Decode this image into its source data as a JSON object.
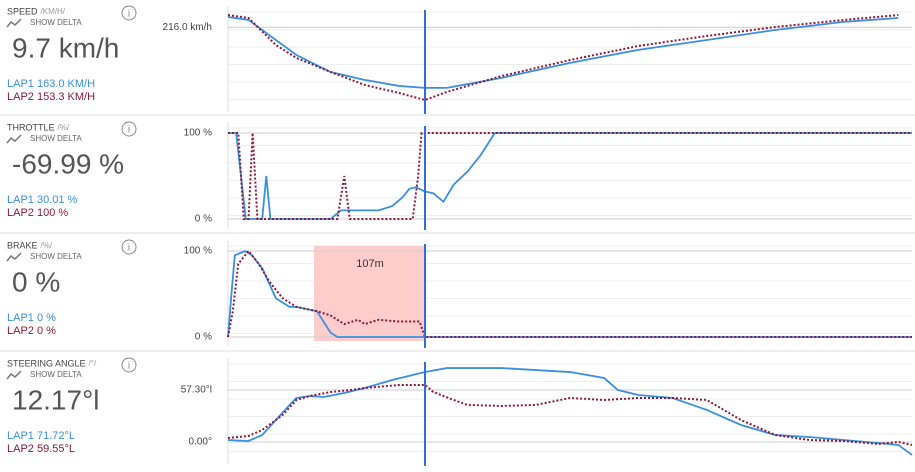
{
  "panels": [
    {
      "title": "SPEED",
      "unit": "/KM/H/",
      "delta_label": "SHOW DELTA",
      "value": "9.7 km/h",
      "lap1": "LAP1 163.0 KM/H",
      "lap2": "LAP2 153.3 KM/H",
      "chart": {
        "type": "line",
        "ylim": [
          140,
          230
        ],
        "xlim": [
          0,
          100
        ],
        "yticks": [
          {
            "value": 216,
            "label": "216.0 km/h"
          }
        ],
        "series": [
          {
            "name": "LAP1",
            "color": "#3a8fde",
            "x": [
              0,
              3,
              7,
              10,
              15,
              20,
              25,
              28.8,
              32,
              40,
              50,
              60,
              70,
              80,
              90,
              98
            ],
            "values": [
              225.4,
              222.7,
              204.3,
              190.5,
              174.9,
              167.6,
              162.1,
              160.3,
              160.3,
              169.5,
              183.3,
              195.2,
              204.3,
              213.5,
              220.9,
              224.5
            ]
          },
          {
            "name": "LAP2",
            "color": "#8b1a3a",
            "x": [
              0,
              3,
              7,
              10,
              15,
              20,
              25,
              28.8,
              32,
              40,
              50,
              60,
              70,
              80,
              90,
              98
            ],
            "values": [
              227.2,
              224.5,
              199.7,
              187.8,
              174.9,
              163.0,
              155.6,
              149.2,
              156.6,
              171.2,
              185.9,
              198.8,
              208.0,
              216.2,
              222.7,
              227.2
            ]
          }
        ]
      }
    },
    {
      "title": "THROTTLE",
      "unit": "/%/",
      "delta_label": "SHOW DELTA",
      "value": "-69.99 %",
      "lap1": "LAP1 30.01 %",
      "lap2": "LAP2 100 %",
      "chart": {
        "type": "line",
        "ylim": [
          0,
          100
        ],
        "xlim": [
          0,
          100
        ],
        "yticks": [
          {
            "value": 0,
            "label": "0 %"
          },
          {
            "value": 100,
            "label": "100 %"
          }
        ],
        "series": [
          {
            "name": "LAP1",
            "color": "#3a8fde",
            "x": [
              0,
              1.2,
              2.6,
              5,
              5.6,
              6.2,
              15,
              16.5,
              20,
              22,
              24,
              25.5,
              26.5,
              27.5,
              28,
              28.8,
              30,
              31.5,
              33,
              35,
              37,
              39,
              100
            ],
            "values": [
              100,
              100,
              0,
              0,
              50,
              0,
              0,
              10,
              10,
              10,
              15,
              25,
              35,
              37,
              35,
              32,
              30,
              20,
              40,
              55,
              75,
              100,
              100
            ]
          },
          {
            "name": "LAP2",
            "color": "#8b1a3a",
            "x": [
              0,
              1.5,
              2.3,
              3,
              3.6,
              4.3,
              5,
              15,
              16,
              17,
              17.8,
              20,
              27,
              27.8,
              28.3,
              28.8,
              40,
              100
            ],
            "values": [
              100,
              100,
              0,
              0,
              100,
              0,
              0,
              0,
              0,
              50,
              0,
              0,
              0,
              50,
              100,
              100,
              100,
              100
            ]
          }
        ]
      }
    },
    {
      "title": "BRAKE",
      "unit": "/%/",
      "delta_label": "SHOW DELTA",
      "value": "0 %",
      "lap1": "LAP1 0 %",
      "lap2": "LAP2 0 %",
      "annotation": "107m",
      "chart": {
        "type": "line",
        "ylim": [
          0,
          100
        ],
        "xlim": [
          0,
          100
        ],
        "yticks": [
          {
            "value": 0,
            "label": "0 %"
          },
          {
            "value": 100,
            "label": "100 %"
          }
        ],
        "series": [
          {
            "name": "LAP1",
            "color": "#3a8fde",
            "x": [
              0,
              0.5,
              1,
              2.5,
              3.5,
              5,
              7,
              9,
              10,
              13,
              15,
              16,
              20,
              28.8,
              100
            ],
            "values": [
              0,
              50,
              95,
              100,
              95,
              80,
              45,
              35,
              35,
              30,
              5,
              0,
              0,
              0,
              0
            ]
          },
          {
            "name": "LAP2",
            "color": "#8b1a3a",
            "x": [
              0,
              0.7,
              1.5,
              3,
              4.5,
              6,
              8,
              10,
              13,
              15,
              17,
              19,
              20,
              22,
              25,
              28,
              28.8,
              29,
              100
            ],
            "values": [
              0,
              30,
              85,
              100,
              85,
              65,
              45,
              35,
              30,
              25,
              15,
              20,
              15,
              20,
              18,
              18,
              0,
              0,
              0
            ]
          }
        ]
      }
    },
    {
      "title": "STEERING ANGLE",
      "unit": "/°/",
      "delta_label": "SHOW DELTA",
      "value": "12.17°l",
      "lap1": "LAP1 71.72°L",
      "lap2": "LAP2 59.55°L",
      "chart": {
        "type": "line",
        "ylim": [
          -20,
          82
        ],
        "xlim": [
          0,
          100
        ],
        "yticks": [
          {
            "value": 0,
            "label": "0.00°"
          },
          {
            "value": 57.3,
            "label": "57.30°l"
          }
        ],
        "series": [
          {
            "name": "LAP1",
            "color": "#3a8fde",
            "x": [
              0,
              3,
              5,
              7,
              9,
              10,
              12,
              14,
              17,
              20,
              24,
              28.8,
              32,
              35,
              40,
              45,
              50,
              55,
              57,
              60,
              65,
              70,
              75,
              80,
              85,
              90,
              95,
              98,
              100
            ],
            "values": [
              2.2,
              1.1,
              7.7,
              24.2,
              40.8,
              48.5,
              50.7,
              49.6,
              54,
              59.5,
              68.3,
              77.1,
              81.5,
              81.5,
              81.5,
              79.3,
              77.1,
              70.5,
              57.3,
              51.8,
              48.5,
              35.3,
              18.7,
              7.7,
              5.5,
              2.2,
              -1.1,
              -3.3,
              -14.3
            ]
          },
          {
            "name": "LAP2",
            "color": "#8b1a3a",
            "x": [
              0,
              3,
              5,
              8,
              10,
              12,
              15,
              18,
              20,
              25,
              28.8,
              30,
              33,
              35,
              40,
              45,
              50,
              55,
              60,
              65,
              70,
              75,
              80,
              85,
              90,
              95,
              98,
              100
            ],
            "values": [
              4.4,
              6.6,
              13.2,
              29.8,
              46.3,
              50.7,
              55.1,
              57.3,
              59.5,
              62.8,
              62.8,
              55.1,
              46.3,
              40.8,
              39.7,
              40.8,
              48.5,
              46.3,
              48.5,
              48.5,
              46.3,
              24.2,
              7.7,
              2.2,
              1.1,
              -2.2,
              0,
              -3.3
            ]
          }
        ]
      }
    }
  ]
}
